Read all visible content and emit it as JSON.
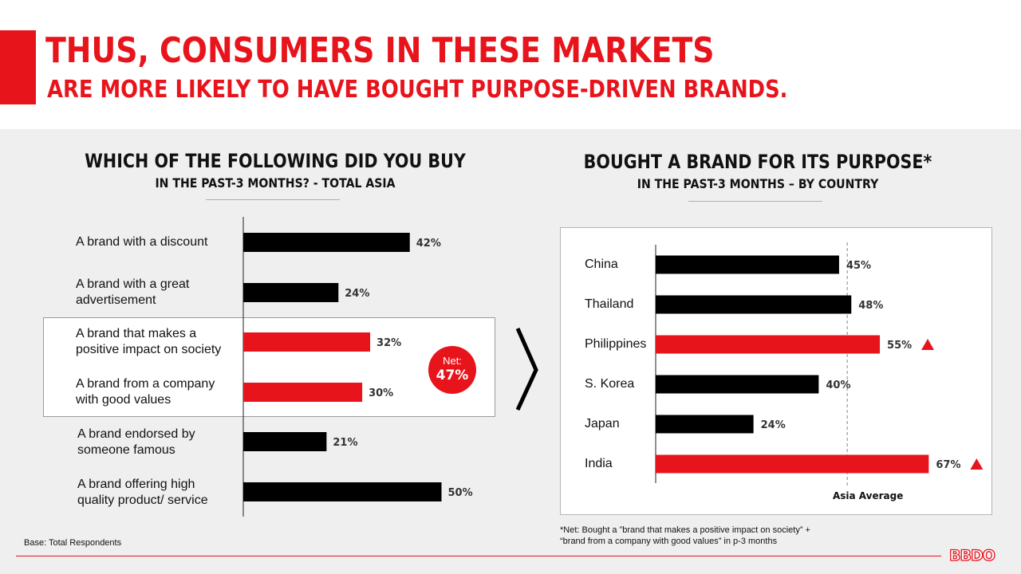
{
  "header": {
    "title_line1": "THUS, CONSUMERS IN THESE MARKETS",
    "title_line2": "ARE MORE LIKELY TO HAVE BOUGHT PURPOSE-DRIVEN BRANDS."
  },
  "colors": {
    "accent": "#e8141c",
    "bar_default": "#000000",
    "background": "#efefef"
  },
  "left_chart": {
    "title": "WHICH OF THE FOLLOWING DID YOU BUY",
    "subtitle": "IN THE PAST-3 MONTHS? - TOTAL ASIA"
  },
  "right_chart": {
    "title": "BOUGHT A BRAND FOR ITS PURPOSE*",
    "subtitle": "IN THE PAST-3 MONTHS – BY COUNTRY",
    "reference_label": "Asia Average"
  },
  "net_badge": {
    "label": "Net:",
    "value": "47%"
  },
  "chart_data": [
    {
      "type": "bar",
      "orientation": "horizontal",
      "title": "WHICH OF THE FOLLOWING DID YOU BUY",
      "subtitle": "IN THE PAST-3 MONTHS? - TOTAL ASIA",
      "categories": [
        [
          "A brand with a discount"
        ],
        [
          "A brand with a great",
          "advertisement"
        ],
        [
          "A brand that makes a",
          "positive impact on society"
        ],
        [
          "A brand from a company",
          "with good values"
        ],
        [
          "A brand endorsed by",
          "someone famous"
        ],
        [
          "A brand offering high",
          "quality product/ service"
        ]
      ],
      "values": [
        42,
        24,
        32,
        30,
        21,
        50
      ],
      "value_labels": [
        "42%",
        "24%",
        "32%",
        "30%",
        "21%",
        "50%"
      ],
      "highlighted": [
        false,
        false,
        true,
        true,
        false,
        false
      ],
      "unit": "%"
    },
    {
      "type": "bar",
      "orientation": "horizontal",
      "title": "BOUGHT A BRAND FOR ITS PURPOSE*",
      "subtitle": "IN THE PAST-3 MONTHS – BY COUNTRY",
      "categories": [
        "China",
        "Thailand",
        "Philippines",
        "S. Korea",
        "Japan",
        "India"
      ],
      "values": [
        45,
        48,
        55,
        40,
        24,
        67
      ],
      "value_labels": [
        "45%",
        "48%",
        "55%",
        "40%",
        "24%",
        "67%"
      ],
      "highlighted": [
        false,
        false,
        true,
        false,
        false,
        true
      ],
      "above_average_marker": [
        false,
        false,
        true,
        false,
        false,
        true
      ],
      "reference_line": {
        "label": "Asia Average",
        "value": 47
      },
      "unit": "%"
    }
  ],
  "footnotes": {
    "base": "Base: Total Respondents",
    "net_note_line1": "*Net: Bought a ”brand that makes a positive impact on society” +",
    "net_note_line2": "“brand from a company with good values” in p-3 months"
  },
  "logo": {
    "text": "BBDO"
  }
}
